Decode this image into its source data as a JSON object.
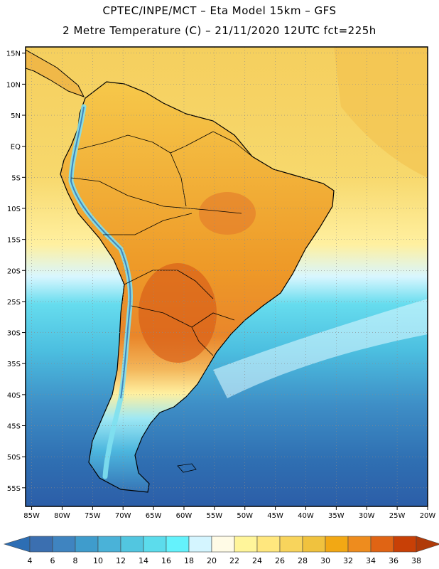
{
  "header": {
    "line1": "CPTEC/INPE/MCT –  Eta Model 15km – GFS",
    "line2": "2 Metre Temperature (C) – 21/11/2020 12UTC fct=225h"
  },
  "map": {
    "lat_labels": [
      "15N",
      "10N",
      "5N",
      "EQ",
      "5S",
      "10S",
      "15S",
      "20S",
      "25S",
      "30S",
      "35S",
      "40S",
      "45S",
      "50S",
      "55S"
    ],
    "lon_labels": [
      "85W",
      "80W",
      "75W",
      "70W",
      "65W",
      "60W",
      "55W",
      "50W",
      "45W",
      "40W",
      "35W",
      "30W",
      "25W",
      "20W"
    ],
    "extent": {
      "lon_min": -86,
      "lon_max": -20,
      "lat_min": -58,
      "lat_max": 16
    },
    "region": "South America"
  },
  "colorbar": {
    "labels": [
      "4",
      "6",
      "8",
      "10",
      "12",
      "14",
      "16",
      "18",
      "20",
      "22",
      "24",
      "26",
      "28",
      "30",
      "32",
      "34",
      "36",
      "38"
    ],
    "colors": [
      "#3b6fb0",
      "#3f84c0",
      "#3f9ccc",
      "#4ab2d8",
      "#52c6e0",
      "#5cdcec",
      "#64f2fc",
      "#d4f5ff",
      "#fffbe6",
      "#fff59a",
      "#ffe77e",
      "#f8d45c",
      "#f0c23e",
      "#f2a814",
      "#ee8c1e",
      "#e06414",
      "#c84006"
    ],
    "under_color": "#2d6eb4",
    "over_color": "#b03a08"
  }
}
